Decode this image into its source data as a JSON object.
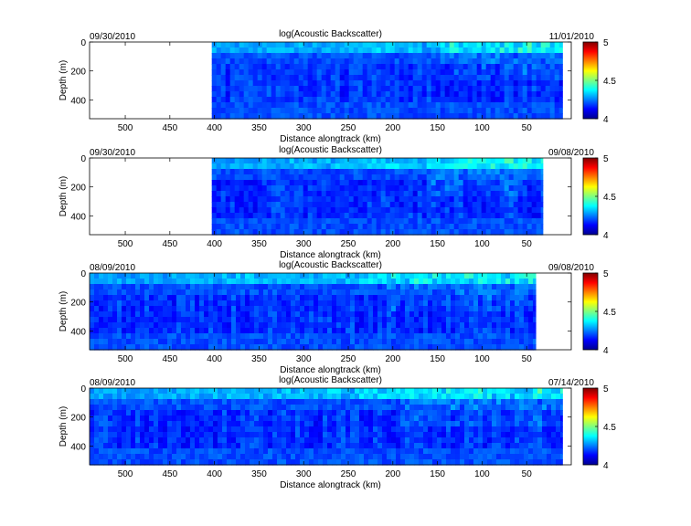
{
  "chart_data": [
    {
      "type": "heatmap",
      "title": "log(Acoustic Backscatter)",
      "date_left": "09/30/2010",
      "date_right": "11/01/2010",
      "xlabel": "Distance alongtrack (km)",
      "ylabel": "Depth (m)",
      "xlim": [
        540,
        0
      ],
      "ylim": [
        530,
        0
      ],
      "x_reversed": true,
      "y_reversed": true,
      "x_ticks": [
        500,
        450,
        400,
        350,
        300,
        250,
        200,
        150,
        100,
        50
      ],
      "y_ticks": [
        0,
        200,
        400
      ],
      "data_extent_km": [
        403,
        10
      ],
      "colorbar": {
        "min": 4,
        "max": 5,
        "ticks": [
          4,
          4.5,
          5
        ],
        "colormap": "jet"
      }
    },
    {
      "type": "heatmap",
      "title": "log(Acoustic Backscatter)",
      "date_left": "09/30/2010",
      "date_right": "09/08/2010",
      "xlabel": "Distance alongtrack (km)",
      "ylabel": "Depth (m)",
      "xlim": [
        540,
        0
      ],
      "ylim": [
        530,
        0
      ],
      "x_reversed": true,
      "y_reversed": true,
      "x_ticks": [
        500,
        450,
        400,
        350,
        300,
        250,
        200,
        150,
        100,
        50
      ],
      "y_ticks": [
        0,
        200,
        400
      ],
      "data_extent_km": [
        403,
        32
      ],
      "colorbar": {
        "min": 4,
        "max": 5,
        "ticks": [
          4,
          4.5,
          5
        ],
        "colormap": "jet"
      }
    },
    {
      "type": "heatmap",
      "title": "log(Acoustic Backscatter)",
      "date_left": "08/09/2010",
      "date_right": "09/08/2010",
      "xlabel": "Distance alongtrack (km)",
      "ylabel": "Depth (m)",
      "xlim": [
        540,
        0
      ],
      "ylim": [
        530,
        0
      ],
      "x_reversed": true,
      "y_reversed": true,
      "x_ticks": [
        500,
        450,
        400,
        350,
        300,
        250,
        200,
        150,
        100,
        50
      ],
      "y_ticks": [
        0,
        200,
        400
      ],
      "data_extent_km": [
        540,
        40
      ],
      "colorbar": {
        "min": 4,
        "max": 5,
        "ticks": [
          4,
          4.5,
          5
        ],
        "colormap": "jet"
      }
    },
    {
      "type": "heatmap",
      "title": "log(Acoustic Backscatter)",
      "date_left": "08/09/2010",
      "date_right": "07/14/2010",
      "xlabel": "Distance alongtrack (km)",
      "ylabel": "Depth (m)",
      "xlim": [
        540,
        0
      ],
      "ylim": [
        530,
        0
      ],
      "x_reversed": true,
      "y_reversed": true,
      "x_ticks": [
        500,
        450,
        400,
        350,
        300,
        250,
        200,
        150,
        100,
        50
      ],
      "y_ticks": [
        0,
        200,
        400
      ],
      "data_extent_km": [
        540,
        10
      ],
      "colorbar": {
        "min": 4,
        "max": 5,
        "ticks": [
          4,
          4.5,
          5
        ],
        "colormap": "jet"
      }
    }
  ]
}
